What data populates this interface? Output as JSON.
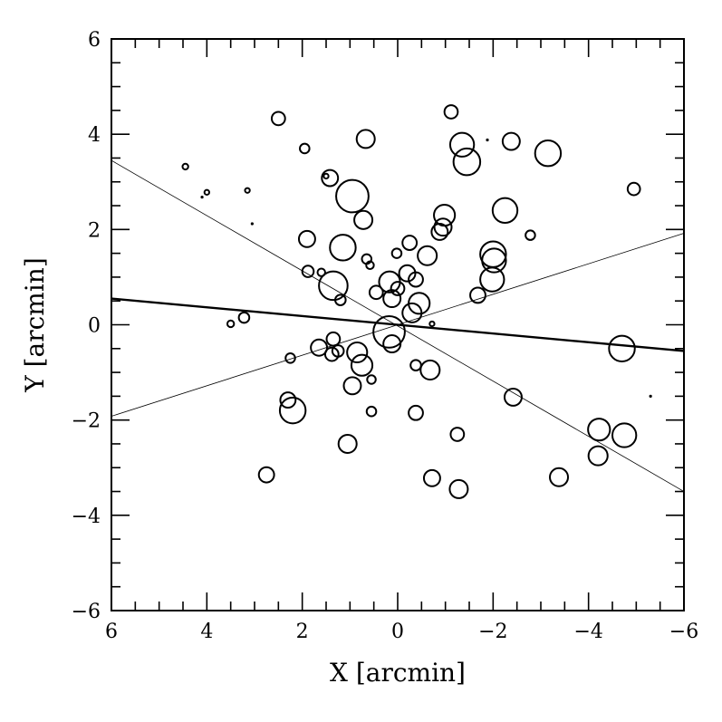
{
  "chart_data": {
    "type": "scatter",
    "xlabel": "X [arcmin]",
    "ylabel": "Y [arcmin]",
    "xlim": [
      6,
      -6
    ],
    "ylim": [
      -6,
      6
    ],
    "x_ticks": [
      6,
      4,
      2,
      0,
      -2,
      -4,
      -6
    ],
    "x_tick_labels": [
      "6",
      "4",
      "2",
      "0",
      "−2",
      "−4",
      "−6"
    ],
    "y_ticks": [
      -6,
      -4,
      -2,
      0,
      2,
      4,
      6
    ],
    "y_tick_labels": [
      "−6",
      "−4",
      "−2",
      "0",
      "2",
      "4",
      "6"
    ],
    "grid": false,
    "marker": "open-circle",
    "points": [
      {
        "x": 2.5,
        "y": 4.33,
        "s": 0.14
      },
      {
        "x": 4.45,
        "y": 3.32,
        "s": 0.06
      },
      {
        "x": 4.0,
        "y": 2.78,
        "s": 0.05
      },
      {
        "x": 4.1,
        "y": 2.68,
        "s": 0.02
      },
      {
        "x": 3.15,
        "y": 2.82,
        "s": 0.05
      },
      {
        "x": 3.05,
        "y": 2.12,
        "s": 0.03
      },
      {
        "x": 1.95,
        "y": 3.7,
        "s": 0.1
      },
      {
        "x": 0.67,
        "y": 3.9,
        "s": 0.19
      },
      {
        "x": 1.42,
        "y": 3.08,
        "s": 0.17
      },
      {
        "x": 1.5,
        "y": 3.12,
        "s": 0.05
      },
      {
        "x": 0.95,
        "y": 2.7,
        "s": 0.34
      },
      {
        "x": 0.72,
        "y": 2.2,
        "s": 0.19
      },
      {
        "x": 1.9,
        "y": 1.8,
        "s": 0.17
      },
      {
        "x": 1.15,
        "y": 1.62,
        "s": 0.27
      },
      {
        "x": 0.65,
        "y": 1.38,
        "s": 0.1
      },
      {
        "x": 0.58,
        "y": 1.25,
        "s": 0.08
      },
      {
        "x": 1.88,
        "y": 1.12,
        "s": 0.12
      },
      {
        "x": 1.6,
        "y": 1.1,
        "s": 0.08
      },
      {
        "x": 1.35,
        "y": 0.82,
        "s": 0.3
      },
      {
        "x": 1.2,
        "y": 0.52,
        "s": 0.11
      },
      {
        "x": 0.45,
        "y": 0.68,
        "s": 0.14
      },
      {
        "x": 0.02,
        "y": 1.5,
        "s": 0.1
      },
      {
        "x": -0.25,
        "y": 1.72,
        "s": 0.15
      },
      {
        "x": 0.17,
        "y": 0.9,
        "s": 0.22
      },
      {
        "x": -0.2,
        "y": 1.08,
        "s": 0.17
      },
      {
        "x": -0.38,
        "y": 0.95,
        "s": 0.15
      },
      {
        "x": 0.0,
        "y": 0.76,
        "s": 0.14
      },
      {
        "x": 0.12,
        "y": 0.55,
        "s": 0.18
      },
      {
        "x": -0.45,
        "y": 0.45,
        "s": 0.22
      },
      {
        "x": -0.3,
        "y": 0.25,
        "s": 0.2
      },
      {
        "x": -0.62,
        "y": 1.45,
        "s": 0.2
      },
      {
        "x": -0.88,
        "y": 1.95,
        "s": 0.17
      },
      {
        "x": -0.95,
        "y": 2.05,
        "s": 0.18
      },
      {
        "x": -0.98,
        "y": 2.3,
        "s": 0.22
      },
      {
        "x": -1.12,
        "y": 4.47,
        "s": 0.14
      },
      {
        "x": -1.35,
        "y": 3.78,
        "s": 0.25
      },
      {
        "x": -1.45,
        "y": 3.42,
        "s": 0.28
      },
      {
        "x": -1.88,
        "y": 3.88,
        "s": 0.04
      },
      {
        "x": -2.38,
        "y": 3.85,
        "s": 0.18
      },
      {
        "x": -3.15,
        "y": 3.6,
        "s": 0.27
      },
      {
        "x": -2.25,
        "y": 2.4,
        "s": 0.26
      },
      {
        "x": -2.78,
        "y": 1.88,
        "s": 0.1
      },
      {
        "x": -2.0,
        "y": 1.48,
        "s": 0.27
      },
      {
        "x": -2.02,
        "y": 1.35,
        "s": 0.25
      },
      {
        "x": -1.98,
        "y": 0.95,
        "s": 0.25
      },
      {
        "x": -1.68,
        "y": 0.62,
        "s": 0.16
      },
      {
        "x": -4.95,
        "y": 2.85,
        "s": 0.13
      },
      {
        "x": 0.18,
        "y": -0.15,
        "s": 0.33
      },
      {
        "x": 0.12,
        "y": -0.4,
        "s": 0.18
      },
      {
        "x": -0.72,
        "y": 0.02,
        "s": 0.05
      },
      {
        "x": 3.5,
        "y": 0.02,
        "s": 0.07
      },
      {
        "x": 3.22,
        "y": 0.15,
        "s": 0.11
      },
      {
        "x": 1.65,
        "y": -0.48,
        "s": 0.17
      },
      {
        "x": 1.35,
        "y": -0.3,
        "s": 0.14
      },
      {
        "x": 1.38,
        "y": -0.62,
        "s": 0.14
      },
      {
        "x": 1.25,
        "y": -0.55,
        "s": 0.12
      },
      {
        "x": 0.85,
        "y": -0.58,
        "s": 0.21
      },
      {
        "x": 0.75,
        "y": -0.85,
        "s": 0.22
      },
      {
        "x": 2.25,
        "y": -0.7,
        "s": 0.1
      },
      {
        "x": 0.95,
        "y": -1.28,
        "s": 0.18
      },
      {
        "x": 0.55,
        "y": -1.15,
        "s": 0.09
      },
      {
        "x": 2.3,
        "y": -1.58,
        "s": 0.16
      },
      {
        "x": 2.2,
        "y": -1.8,
        "s": 0.27
      },
      {
        "x": 0.55,
        "y": -1.82,
        "s": 0.1
      },
      {
        "x": -0.38,
        "y": -0.85,
        "s": 0.11
      },
      {
        "x": -0.68,
        "y": -0.95,
        "s": 0.2
      },
      {
        "x": -0.38,
        "y": -1.85,
        "s": 0.15
      },
      {
        "x": -1.25,
        "y": -2.3,
        "s": 0.14
      },
      {
        "x": 1.05,
        "y": -2.5,
        "s": 0.19
      },
      {
        "x": 2.75,
        "y": -3.15,
        "s": 0.16
      },
      {
        "x": -0.72,
        "y": -3.22,
        "s": 0.17
      },
      {
        "x": -1.28,
        "y": -3.45,
        "s": 0.19
      },
      {
        "x": -3.38,
        "y": -3.2,
        "s": 0.19
      },
      {
        "x": -2.42,
        "y": -1.52,
        "s": 0.18
      },
      {
        "x": -4.22,
        "y": -2.2,
        "s": 0.23
      },
      {
        "x": -4.2,
        "y": -2.75,
        "s": 0.2
      },
      {
        "x": -4.75,
        "y": -2.32,
        "s": 0.25
      },
      {
        "x": -4.7,
        "y": -0.5,
        "s": 0.27
      },
      {
        "x": -5.3,
        "y": -1.5,
        "s": 0.02
      }
    ],
    "lines": [
      {
        "style": "thick",
        "x1": 6,
        "y1": 0.55,
        "x2": -6,
        "y2": -0.55
      },
      {
        "style": "thin",
        "x1": 6,
        "y1": 3.45,
        "x2": -6,
        "y2": -3.5
      },
      {
        "style": "thin",
        "x1": 6,
        "y1": -1.92,
        "x2": -6,
        "y2": 1.92
      }
    ]
  }
}
